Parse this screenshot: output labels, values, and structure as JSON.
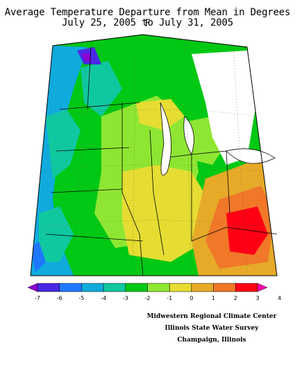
{
  "title": {
    "line1": "Average Temperature Departure from Mean in Degrees F",
    "line2": "July 25, 2005 to July 31, 2005"
  },
  "legend": {
    "labels": [
      "-7",
      "-6",
      "-5",
      "-4",
      "-3",
      "-2",
      "-1",
      "0",
      "1",
      "2",
      "3",
      "4"
    ],
    "colors": [
      "#8e00d6",
      "#4b28e6",
      "#1e78ff",
      "#10aadc",
      "#10c8a0",
      "#00c814",
      "#8ee632",
      "#e6dc32",
      "#e6aa28",
      "#f07828",
      "#ff0014",
      "#ff00aa"
    ]
  },
  "credits": [
    "Midwestern Regional Climate Center",
    "Illinois State Water Survey",
    "Champaign, Illinois"
  ]
}
